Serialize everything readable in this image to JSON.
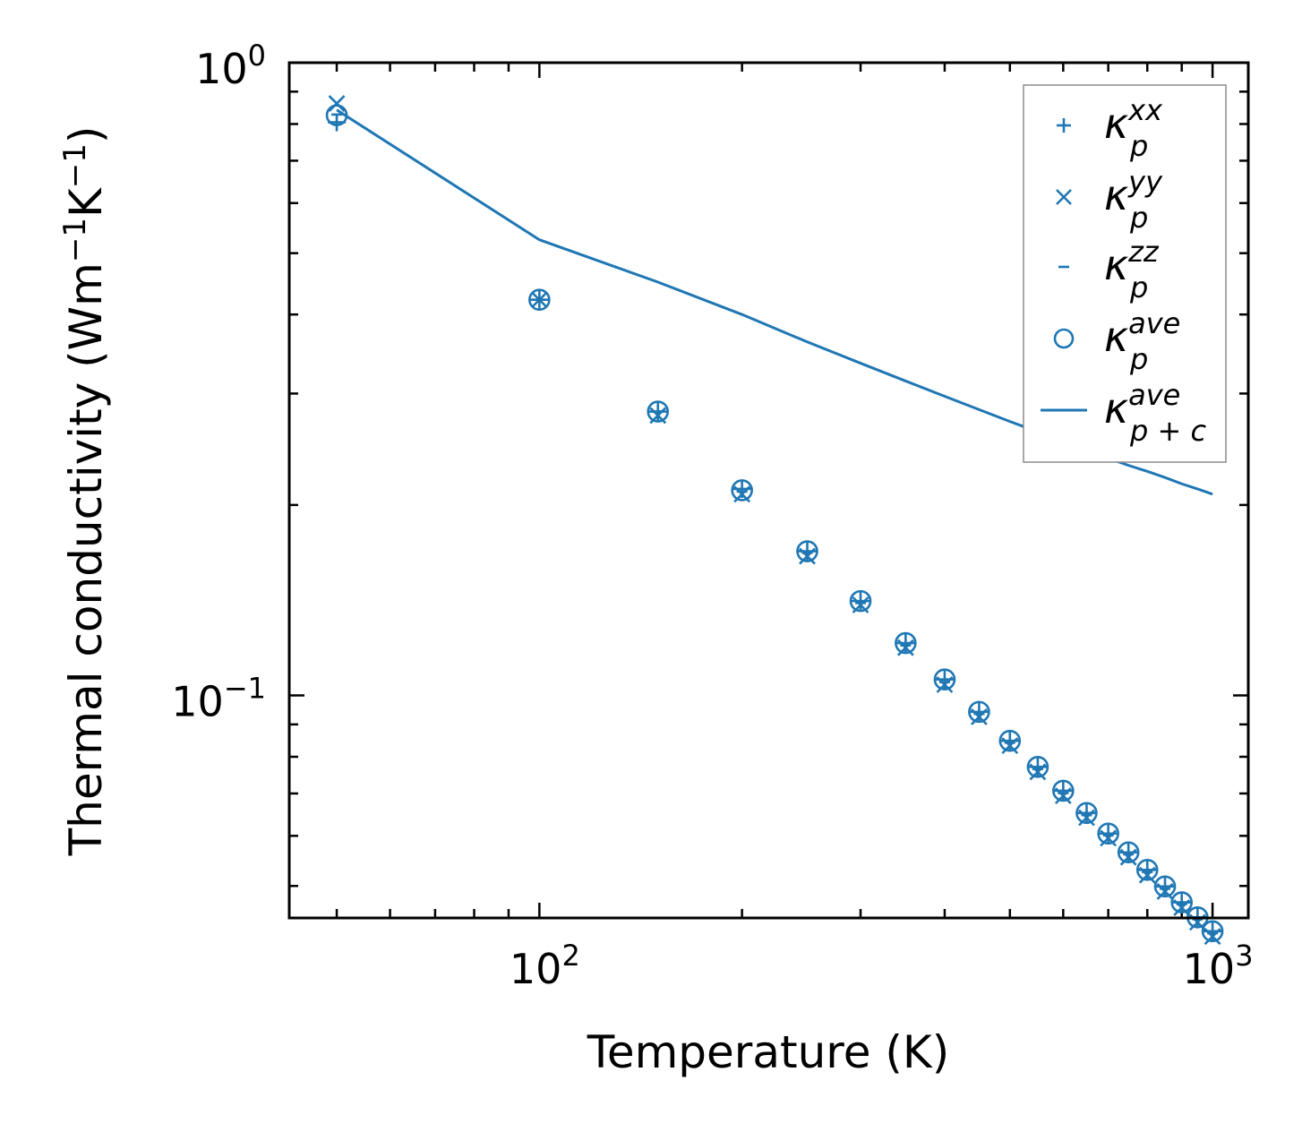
{
  "chart_data": {
    "type": "scatter",
    "title": "",
    "xlabel": "Temperature (K)",
    "ylabel": {
      "prefix": "Thermal conductivity (Wm",
      "sup1": "−1",
      "mid": "K",
      "sup2": "−1",
      "suffix": ")"
    },
    "xscale": "log",
    "yscale": "log",
    "xlim": [
      42.5,
      1130
    ],
    "ylim": [
      0.0445,
      1.0
    ],
    "x_major_ticks": [
      {
        "value": 100,
        "base": "10",
        "exp": "2"
      },
      {
        "value": 1000,
        "base": "10",
        "exp": "3"
      }
    ],
    "y_major_ticks": [
      {
        "value": 0.1,
        "base": "10",
        "exp": "−1"
      },
      {
        "value": 1.0,
        "base": "10",
        "exp": "0"
      }
    ],
    "color": "#1f77b4",
    "legend_position": "top-right",
    "x": [
      50,
      100,
      150,
      200,
      250,
      300,
      350,
      400,
      450,
      500,
      550,
      600,
      650,
      700,
      750,
      800,
      850,
      900,
      950,
      1000
    ],
    "series": [
      {
        "name": "κ_p^xx",
        "label_base": "κ",
        "label_sub": "p",
        "label_sup": "xx",
        "marker": "plus",
        "values": [
          0.805,
          0.422,
          0.281,
          0.212,
          0.169,
          0.141,
          0.121,
          0.106,
          0.0942,
          0.0848,
          0.0771,
          0.0707,
          0.0652,
          0.0605,
          0.0565,
          0.053,
          0.0499,
          0.0471,
          0.0446,
          0.0424
        ]
      },
      {
        "name": "κ_p^yy",
        "label_base": "κ",
        "label_sub": "p",
        "label_sup": "yy",
        "marker": "x",
        "values": [
          0.862,
          0.422,
          0.277,
          0.208,
          0.166,
          0.139,
          0.119,
          0.104,
          0.0925,
          0.0833,
          0.0757,
          0.0694,
          0.0641,
          0.0595,
          0.0555,
          0.052,
          0.049,
          0.0462,
          0.0438,
          0.0416
        ]
      },
      {
        "name": "κ_p^zz",
        "label_base": "κ",
        "label_sub": "p",
        "label_sup": "zz",
        "marker": "hline",
        "values": [
          0.828,
          0.422,
          0.281,
          0.21,
          0.168,
          0.14,
          0.12,
          0.105,
          0.0935,
          0.0842,
          0.0765,
          0.0701,
          0.0647,
          0.0601,
          0.0561,
          0.0526,
          0.0495,
          0.0468,
          0.0443,
          0.0421
        ]
      },
      {
        "name": "κ_p^ave",
        "label_base": "κ",
        "label_sub": "p",
        "label_sup": "ave",
        "marker": "circle",
        "values": [
          0.826,
          0.422,
          0.281,
          0.211,
          0.169,
          0.141,
          0.121,
          0.106,
          0.0942,
          0.0848,
          0.0771,
          0.0707,
          0.0652,
          0.0605,
          0.0565,
          0.053,
          0.0499,
          0.0471,
          0.0446,
          0.0424
        ]
      },
      {
        "name": "κ_p+c^ave",
        "label_base": "κ",
        "label_sub": "p + c",
        "label_sup": "ave",
        "marker": "line",
        "values": [
          0.842,
          0.525,
          0.45,
          0.4,
          0.362,
          0.335,
          0.314,
          0.297,
          0.283,
          0.271,
          0.261,
          0.252,
          0.244,
          0.237,
          0.231,
          0.226,
          0.221,
          0.216,
          0.212,
          0.208
        ]
      }
    ]
  }
}
